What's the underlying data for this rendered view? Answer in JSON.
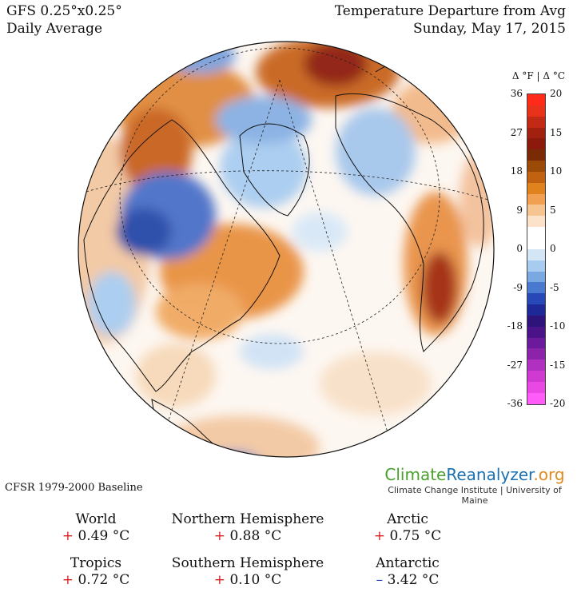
{
  "header": {
    "model": "GFS 0.25°x0.25°",
    "period": "Daily Average",
    "title": "Temperature Departure from Avg",
    "date": "Sunday, May 17, 2015"
  },
  "legend": {
    "units": "Δ °F  |  Δ °C",
    "ticks_f": [
      "36",
      "27",
      "18",
      "9",
      "0",
      "-9",
      "-18",
      "-27",
      "-36"
    ],
    "ticks_c": [
      "20",
      "15",
      "10",
      "5",
      "0",
      "-5",
      "-10",
      "-15",
      "-20"
    ],
    "colors": [
      "#ff2a1a",
      "#e8321c",
      "#c22a16",
      "#a2200f",
      "#8b1a0c",
      "#7a2a05",
      "#9c4a08",
      "#c06210",
      "#e0821e",
      "#f0a050",
      "#f6c490",
      "#fbe2c8",
      "#ffffff",
      "#ffffff",
      "#d4e6f6",
      "#a8ccf0",
      "#7aa8e0",
      "#4a7ad0",
      "#2848b8",
      "#1e2896",
      "#2e147a",
      "#4a1488",
      "#6a1a9a",
      "#8c24aa",
      "#b030c0",
      "#d03ad0",
      "#ea48e2",
      "#ff5cf8"
    ]
  },
  "baseline": "CFSR 1979-2000 Baseline",
  "brand": {
    "logo_a": "Climate",
    "logo_b": "Reanalyzer",
    "logo_c": ".org",
    "sub": "Climate Change Institute | University of Maine"
  },
  "stats": [
    {
      "label": "World",
      "sign": "+",
      "value": "0.49 °C"
    },
    {
      "label": "Northern Hemisphere",
      "sign": "+",
      "value": "0.88 °C"
    },
    {
      "label": "Arctic",
      "sign": "+",
      "value": "0.75 °C"
    },
    {
      "label": "Tropics",
      "sign": "+",
      "value": "0.72 °C"
    },
    {
      "label": "Southern Hemisphere",
      "sign": "+",
      "value": "0.10 °C"
    },
    {
      "label": "Antarctic",
      "sign": "–",
      "value": "3.42 °C"
    }
  ]
}
